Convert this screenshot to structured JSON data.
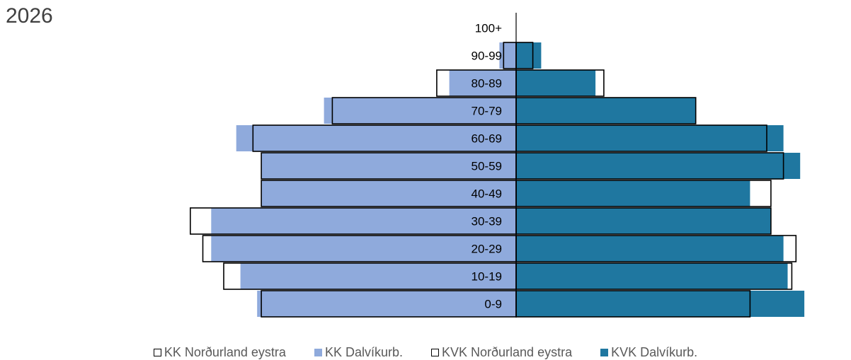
{
  "chart_data": {
    "type": "bar",
    "title": "2026",
    "orientation": "horizontal-population-pyramid",
    "categories": [
      "0-9",
      "10-19",
      "20-29",
      "30-39",
      "40-49",
      "50-59",
      "60-69",
      "70-79",
      "80-89",
      "90-99",
      "100+"
    ],
    "series": [
      {
        "name": "KK Norðurland eystra",
        "side": "left",
        "style": "outline",
        "color": "#000000",
        "values": [
          6.1,
          7.0,
          7.5,
          7.8,
          6.1,
          6.1,
          6.3,
          4.4,
          1.9,
          0.3,
          0.0
        ]
      },
      {
        "name": "KK Dalvíkurb.",
        "side": "left",
        "style": "fill",
        "color": "#8FAADC",
        "values": [
          6.2,
          6.6,
          7.3,
          7.3,
          6.1,
          6.1,
          6.7,
          4.6,
          1.6,
          0.4,
          0.0
        ]
      },
      {
        "name": "KVK Norðurland eystra",
        "side": "right",
        "style": "outline",
        "color": "#000000",
        "values": [
          5.6,
          6.6,
          6.7,
          6.1,
          6.1,
          6.4,
          6.0,
          4.3,
          2.1,
          0.4,
          0.0
        ]
      },
      {
        "name": "KVK Dalvíkurb.",
        "side": "right",
        "style": "fill",
        "color": "#1F77A0",
        "values": [
          6.9,
          6.5,
          6.4,
          6.1,
          5.6,
          6.8,
          6.4,
          4.3,
          1.9,
          0.6,
          0.0
        ]
      }
    ],
    "xlim": [
      -8.0,
      8.0
    ],
    "grid": false,
    "legend_position": "bottom"
  },
  "legend": [
    {
      "label": "KK Norðurland eystra",
      "swatch": "outline",
      "color": "#000000"
    },
    {
      "label": "KK Dalvíkurb.",
      "swatch": "fill",
      "color": "#8FAADC"
    },
    {
      "label": "KVK Norðurland eystra",
      "swatch": "outline",
      "color": "#000000"
    },
    {
      "label": "KVK Dalvíkurb.",
      "swatch": "fill",
      "color": "#1F77A0"
    }
  ]
}
